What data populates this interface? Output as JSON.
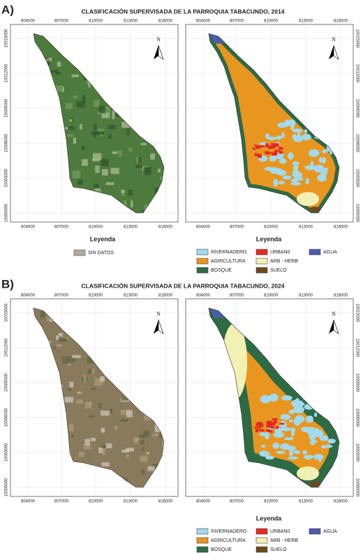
{
  "north": "N",
  "panels": [
    {
      "label": "A)",
      "title": "CLASIFICACIÓN SUPERVISADA DE LA PARROQUIA TABACUNDO, 2014",
      "x_ticks": [
        "804000",
        "807000",
        "810000",
        "813000",
        "816000"
      ],
      "y_ticks": [
        "10015000",
        "10012000",
        "10009000",
        "10006000",
        "10003000",
        "10000000"
      ],
      "legend_left": {
        "title": "Leyenda",
        "items": [
          {
            "label": "SIN DATOS",
            "color": "#b5a89e"
          }
        ]
      },
      "legend_right": {
        "title": "Leyenda",
        "items": [
          {
            "label": "INVERNADERO",
            "color": "#a3d9ec"
          },
          {
            "label": "URBAN0",
            "color": "#e52a20"
          },
          {
            "label": "AGUA",
            "color": "#4b5ca8"
          },
          {
            "label": "AGRICULTURA",
            "color": "#e8961f"
          },
          {
            "label": "ARB - HERB",
            "color": "#f3f0b3"
          },
          {
            "label": "BOSQUE",
            "color": "#2d6b45"
          },
          {
            "label": "SUELO",
            "color": "#6b4a1f"
          }
        ]
      }
    },
    {
      "label": "B)",
      "title": "CLASIFICACIÓN SUPERVISADA DE LA PARROQUIA TABACUNDO, 2024",
      "x_ticks": [
        "804000",
        "807000",
        "810000",
        "813000",
        "816000"
      ],
      "y_ticks": [
        "10015000",
        "10012000",
        "10009000",
        "10006000",
        "10003000",
        "10000000"
      ],
      "legend_right": {
        "title": "Leyenda",
        "items": [
          {
            "label": "INVERNADERO",
            "color": "#a3d9ec"
          },
          {
            "label": "URBAN0",
            "color": "#e52a20"
          },
          {
            "label": "AGUA",
            "color": "#4b5ca8"
          },
          {
            "label": "AGRICULTURA",
            "color": "#e8961f"
          },
          {
            "label": "ARB - HERB",
            "color": "#f3f0b3"
          },
          {
            "label": "BOSQUE",
            "color": "#2d6b45"
          },
          {
            "label": "SUELO",
            "color": "#6b4a1f"
          }
        ]
      }
    }
  ]
}
